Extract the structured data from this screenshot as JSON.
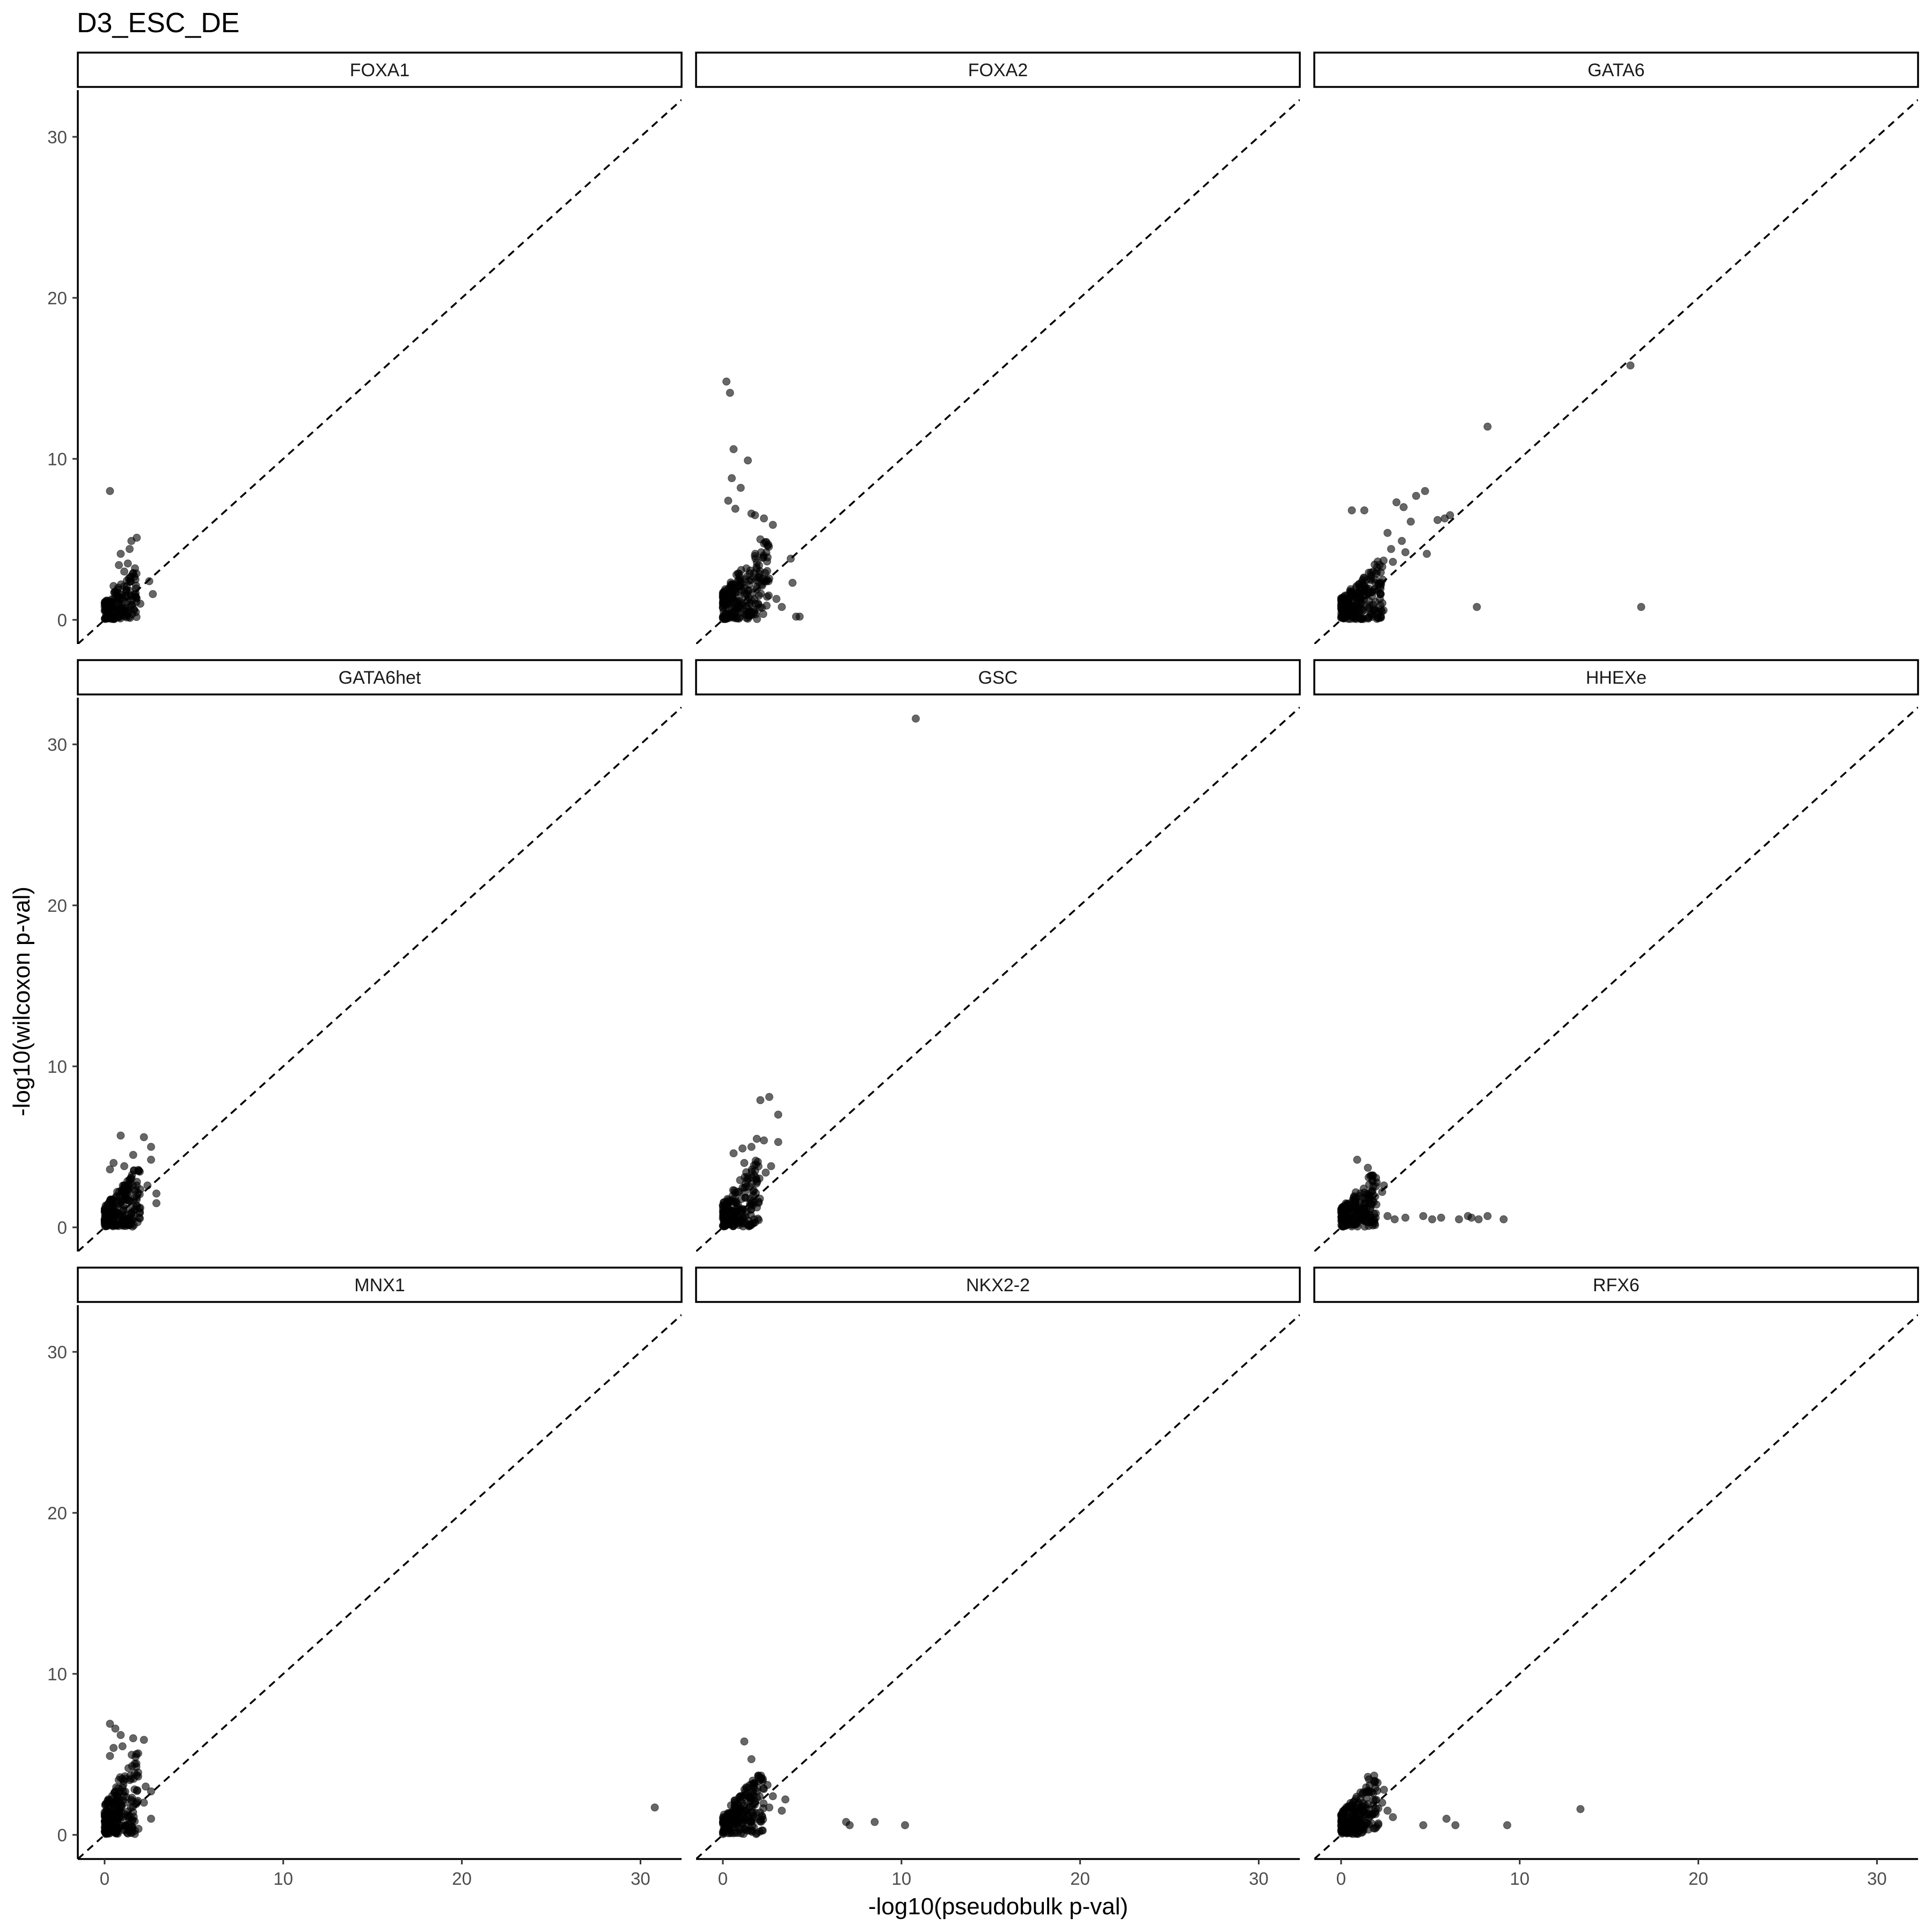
{
  "chart_data": {
    "type": "scatter",
    "title": "D3_ESC_DE",
    "xlabel": "-log10(pseudobulk p-val)",
    "ylabel": "-log10(wilcoxon p-val)",
    "xlim": [
      -1.5,
      32.3
    ],
    "ylim": [
      -1.5,
      32.9
    ],
    "x_ticks": [
      0,
      10,
      20,
      30
    ],
    "y_ticks": [
      0,
      10,
      20,
      30
    ],
    "x_tick_labels": [
      "0",
      "10",
      "20",
      "30"
    ],
    "y_tick_labels": [
      "0",
      "10",
      "20",
      "30"
    ],
    "reference_line": "y = x (dashed)",
    "grid": false,
    "legend": "none",
    "point_color": "#000000",
    "point_alpha": 0.6,
    "panels": [
      {
        "label": "FOXA1",
        "cluster": {
          "x_max": 1.8,
          "y_max": 2.6,
          "n": 160
        },
        "points": [
          [
            0.3,
            8.0
          ],
          [
            1.8,
            5.1
          ],
          [
            1.5,
            4.9
          ],
          [
            1.4,
            4.4
          ],
          [
            0.9,
            4.1
          ],
          [
            2.5,
            2.4
          ],
          [
            2.7,
            1.6
          ],
          [
            2.0,
            1.0
          ],
          [
            1.3,
            3.5
          ],
          [
            1.7,
            3.2
          ],
          [
            0.5,
            2.1
          ],
          [
            1.1,
            3.0
          ],
          [
            1.6,
            2.9
          ],
          [
            0.8,
            3.4
          ]
        ]
      },
      {
        "label": "FOXA2",
        "cluster": {
          "x_max": 2.6,
          "y_max": 4.2,
          "n": 220
        },
        "points": [
          [
            0.2,
            14.8
          ],
          [
            0.4,
            14.1
          ],
          [
            0.6,
            10.6
          ],
          [
            1.4,
            9.9
          ],
          [
            0.5,
            8.8
          ],
          [
            1.0,
            8.2
          ],
          [
            0.3,
            7.4
          ],
          [
            1.6,
            6.6
          ],
          [
            2.3,
            6.3
          ],
          [
            2.8,
            5.9
          ],
          [
            1.8,
            6.5
          ],
          [
            0.7,
            6.9
          ],
          [
            3.8,
            3.8
          ],
          [
            3.9,
            2.3
          ],
          [
            4.3,
            0.2
          ],
          [
            4.1,
            0.2
          ],
          [
            3.3,
            0.8
          ],
          [
            3.0,
            1.3
          ],
          [
            2.5,
            4.6
          ],
          [
            2.1,
            5.0
          ]
        ]
      },
      {
        "label": "GATA6",
        "cluster": {
          "x_max": 2.4,
          "y_max": 3.2,
          "n": 220
        },
        "points": [
          [
            16.2,
            15.8
          ],
          [
            8.2,
            12.0
          ],
          [
            7.6,
            0.8
          ],
          [
            16.8,
            0.8
          ],
          [
            6.1,
            6.5
          ],
          [
            5.8,
            6.3
          ],
          [
            5.4,
            6.2
          ],
          [
            4.7,
            8.0
          ],
          [
            4.2,
            7.7
          ],
          [
            3.5,
            7.0
          ],
          [
            3.1,
            7.3
          ],
          [
            0.6,
            6.8
          ],
          [
            1.3,
            6.8
          ],
          [
            3.9,
            6.1
          ],
          [
            2.6,
            5.4
          ],
          [
            4.8,
            4.1
          ],
          [
            3.4,
            4.9
          ],
          [
            2.8,
            4.4
          ],
          [
            3.6,
            4.2
          ],
          [
            2.9,
            3.6
          ]
        ]
      },
      {
        "label": "GATA6het",
        "cluster": {
          "x_max": 2.0,
          "y_max": 3.1,
          "n": 200
        },
        "points": [
          [
            0.9,
            5.7
          ],
          [
            2.2,
            5.6
          ],
          [
            2.6,
            5.0
          ],
          [
            1.6,
            4.5
          ],
          [
            2.6,
            4.2
          ],
          [
            0.5,
            4.0
          ],
          [
            1.1,
            3.8
          ],
          [
            2.9,
            2.1
          ],
          [
            2.9,
            1.5
          ],
          [
            2.4,
            2.6
          ],
          [
            1.9,
            3.5
          ],
          [
            0.3,
            3.6
          ]
        ]
      },
      {
        "label": "GSC",
        "cluster": {
          "x_max": 2.1,
          "y_max": 3.6,
          "n": 200
        },
        "points": [
          [
            10.8,
            31.6
          ],
          [
            2.6,
            8.1
          ],
          [
            2.1,
            7.9
          ],
          [
            3.1,
            7.0
          ],
          [
            1.9,
            5.5
          ],
          [
            2.3,
            5.4
          ],
          [
            3.1,
            5.3
          ],
          [
            1.6,
            5.0
          ],
          [
            1.1,
            4.9
          ],
          [
            0.6,
            4.6
          ],
          [
            2.7,
            3.8
          ],
          [
            2.4,
            3.4
          ],
          [
            1.2,
            4.0
          ]
        ]
      },
      {
        "label": "HHEXe",
        "cluster": {
          "x_max": 2.0,
          "y_max": 2.8,
          "n": 200
        },
        "points": [
          [
            0.9,
            4.2
          ],
          [
            1.5,
            3.7
          ],
          [
            9.1,
            0.5
          ],
          [
            8.2,
            0.7
          ],
          [
            7.7,
            0.5
          ],
          [
            7.3,
            0.6
          ],
          [
            7.1,
            0.7
          ],
          [
            6.6,
            0.5
          ],
          [
            5.6,
            0.6
          ],
          [
            5.1,
            0.5
          ],
          [
            4.6,
            0.7
          ],
          [
            3.6,
            0.6
          ],
          [
            3.0,
            0.5
          ],
          [
            2.6,
            0.7
          ],
          [
            2.4,
            2.6
          ],
          [
            2.3,
            2.2
          ]
        ]
      },
      {
        "label": "MNX1",
        "cluster": {
          "x_max": 1.9,
          "y_max": 4.4,
          "n": 220
        },
        "points": [
          [
            30.8,
            1.7
          ],
          [
            0.3,
            6.9
          ],
          [
            0.6,
            6.6
          ],
          [
            0.9,
            6.2
          ],
          [
            1.6,
            6.0
          ],
          [
            2.2,
            5.9
          ],
          [
            0.5,
            5.4
          ],
          [
            1.0,
            5.5
          ],
          [
            0.3,
            4.9
          ],
          [
            2.3,
            3.0
          ],
          [
            2.6,
            2.7
          ],
          [
            2.6,
            1.0
          ],
          [
            2.2,
            2.0
          ],
          [
            1.8,
            3.7
          ]
        ]
      },
      {
        "label": "NKX2-2",
        "cluster": {
          "x_max": 2.3,
          "y_max": 3.2,
          "n": 200
        },
        "points": [
          [
            1.2,
            5.8
          ],
          [
            1.6,
            4.7
          ],
          [
            10.2,
            0.6
          ],
          [
            8.5,
            0.8
          ],
          [
            7.1,
            0.6
          ],
          [
            6.9,
            0.8
          ],
          [
            3.5,
            2.2
          ],
          [
            3.3,
            1.5
          ],
          [
            2.6,
            1.7
          ],
          [
            2.8,
            2.4
          ],
          [
            2.5,
            3.1
          ]
        ]
      },
      {
        "label": "RFX6",
        "cluster": {
          "x_max": 2.1,
          "y_max": 3.2,
          "n": 200
        },
        "points": [
          [
            13.4,
            1.6
          ],
          [
            9.3,
            0.6
          ],
          [
            6.4,
            0.6
          ],
          [
            5.9,
            1.0
          ],
          [
            4.6,
            0.6
          ],
          [
            2.9,
            1.1
          ],
          [
            1.5,
            3.6
          ],
          [
            2.3,
            2.0
          ],
          [
            2.6,
            1.5
          ],
          [
            2.4,
            2.8
          ]
        ]
      }
    ]
  }
}
